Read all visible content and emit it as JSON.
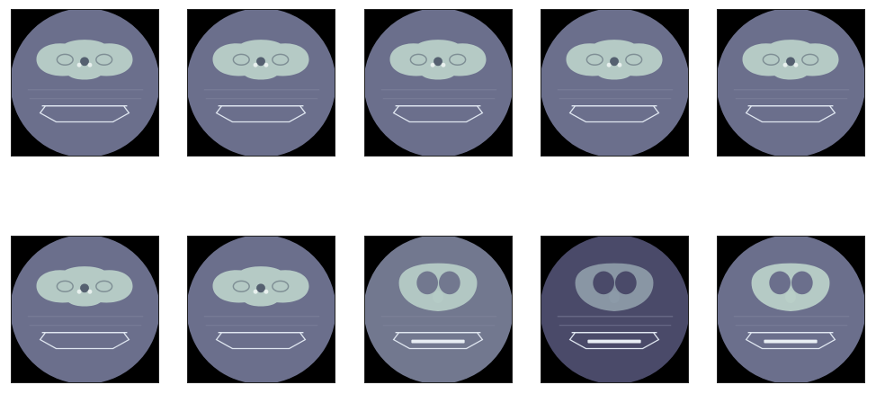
{
  "figure": {
    "panels": [
      {
        "id": 1,
        "variant": "upper",
        "bg": "#6b6f8c",
        "body": "#b9cfc8",
        "lungs": false,
        "row": 0,
        "col": 0
      },
      {
        "id": 2,
        "variant": "upper",
        "bg": "#6b6f8c",
        "body": "#b9cfc8",
        "lungs": false,
        "row": 0,
        "col": 1
      },
      {
        "id": 3,
        "variant": "upper",
        "bg": "#6b6f8c",
        "body": "#b9cfc8",
        "lungs": false,
        "row": 0,
        "col": 2
      },
      {
        "id": 4,
        "variant": "upper",
        "bg": "#6b6f8c",
        "body": "#b9cfc8",
        "lungs": false,
        "row": 0,
        "col": 3
      },
      {
        "id": 5,
        "variant": "upper",
        "bg": "#6b6f8c",
        "body": "#b9cfc8",
        "lungs": false,
        "row": 0,
        "col": 4
      },
      {
        "id": 6,
        "variant": "upper",
        "bg": "#6b6f8c",
        "body": "#b9cfc8",
        "lungs": false,
        "row": 1,
        "col": 0
      },
      {
        "id": 7,
        "variant": "upper",
        "bg": "#6b6f8c",
        "body": "#b9cfc8",
        "lungs": false,
        "row": 1,
        "col": 1
      },
      {
        "id": 8,
        "variant": "lungs",
        "bg": "#72788f",
        "body": "#b5cbc6",
        "lungs": true,
        "row": 1,
        "col": 2
      },
      {
        "id": 9,
        "variant": "lungs-dark",
        "bg": "#4a4a69",
        "body": "#8c9aa8",
        "lungs": true,
        "row": 1,
        "col": 3
      },
      {
        "id": 10,
        "variant": "lungs",
        "bg": "#6b6f8c",
        "body": "#b9cfc8",
        "lungs": true,
        "row": 1,
        "col": 4
      }
    ]
  }
}
